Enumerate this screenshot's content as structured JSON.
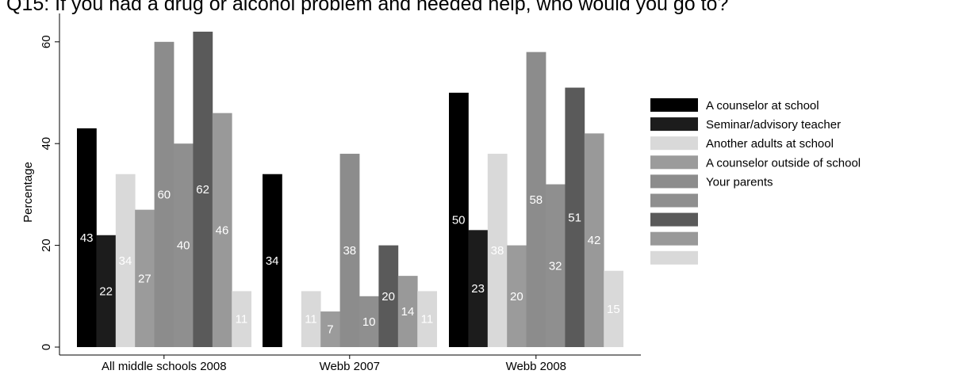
{
  "chart_data": {
    "type": "bar",
    "title": "Q15: If you had a drug or alcohol problem and needed help, who would you go to?",
    "ylabel": "Percentage",
    "xlabel": "",
    "ylim": [
      0,
      65
    ],
    "yticks": [
      0,
      20,
      40,
      60
    ],
    "categories": [
      "All middle schools 2008",
      "Webb 2007",
      "Webb 2008"
    ],
    "series": [
      {
        "name": "A counselor at school",
        "color": "#000000",
        "values": [
          43,
          34,
          50
        ]
      },
      {
        "name": "Seminar/advisory teacher",
        "color": "#1c1c1c",
        "values": [
          22,
          0,
          23
        ]
      },
      {
        "name": "Another adults at school",
        "color": "#d9d9d9",
        "values": [
          34,
          11,
          38
        ]
      },
      {
        "name": "A counselor outside of school",
        "color": "#9b9b9b",
        "values": [
          27,
          7,
          20
        ]
      },
      {
        "name": "Your parents",
        "color": "#8c8c8c",
        "values": [
          60,
          38,
          58
        ]
      },
      {
        "name": "",
        "color": "#8f8f8f",
        "values": [
          40,
          10,
          32
        ]
      },
      {
        "name": "",
        "color": "#5a5a5a",
        "values": [
          62,
          20,
          51
        ]
      },
      {
        "name": "",
        "color": "#999999",
        "values": [
          46,
          14,
          42
        ]
      },
      {
        "name": "",
        "color": "#d9d9d9",
        "values": [
          11,
          11,
          15
        ]
      }
    ],
    "legend": "right",
    "grid": false
  }
}
